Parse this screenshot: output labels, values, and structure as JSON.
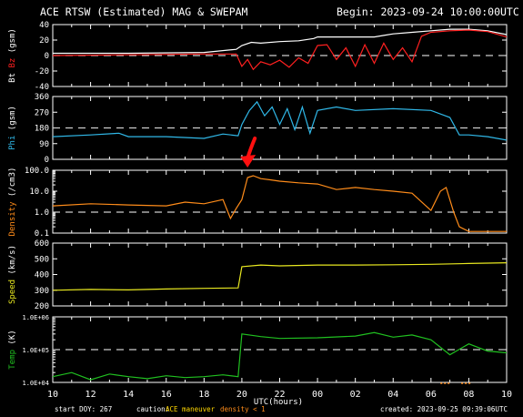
{
  "header": {
    "title": "ACE RTSW (Estimated) MAG & SWEPAM",
    "begin": "Begin: 2023-09-24 10:00:00UTC"
  },
  "footer": {
    "start_doy": "start DOY: 267",
    "caution": "caution:",
    "maneuver": "ACE maneuver",
    "density_note": "density < 1",
    "created": "created: 2023-09-25 09:39:06UTC"
  },
  "colors": {
    "bt": "#ffffff",
    "bz": "#ff2020",
    "phi": "#30b8e8",
    "density": "#ff8c1a",
    "speed": "#e8e820",
    "temp": "#20c020",
    "arrow": "#ff1010",
    "maneuver": "#ffd700"
  },
  "chart_data": {
    "type": "line",
    "xlabel": "UTC(hours)",
    "xticks": [
      "10",
      "12",
      "14",
      "16",
      "18",
      "20",
      "22",
      "00",
      "02",
      "04",
      "06",
      "08",
      "10"
    ],
    "x_hours": [
      0,
      2,
      4,
      6,
      8,
      10,
      12,
      14,
      16,
      18,
      20,
      22,
      24
    ],
    "annotation": {
      "shape": "red arrow",
      "x_hour": 10.3,
      "panel": "Density"
    },
    "panels": [
      {
        "name": "bt_bz",
        "ylabel_parts": [
          "Bt",
          "Bz",
          "(gsm)"
        ],
        "scale": "linear",
        "ylim": [
          -40,
          40
        ],
        "yticks": [
          40,
          20,
          0,
          -20,
          -40
        ],
        "yticklabels": [
          "40",
          "20",
          "0",
          "-20",
          "-40"
        ],
        "dashed": 0,
        "series": [
          {
            "name": "Bt",
            "x": [
              0,
              4,
              8,
              9.7,
              10,
              10.5,
              11,
              12,
              13,
              13.8,
              14,
              15,
              16,
              17,
              17.5,
              18,
              19,
              20,
              21,
              22,
              23,
              24
            ],
            "y": [
              3,
              3,
              4,
              8,
              13,
              17,
              16,
              18,
              19,
              22,
              24,
              24,
              24,
              24,
              26,
              28,
              30,
              32,
              34,
              34,
              32,
              27
            ]
          },
          {
            "name": "Bz",
            "x": [
              0,
              4,
              8,
              9.7,
              10,
              10.3,
              10.6,
              11,
              11.5,
              12,
              12.5,
              13,
              13.5,
              14,
              14.5,
              15,
              15.5,
              16,
              16.5,
              17,
              17.5,
              18,
              18.5,
              19,
              19.5,
              20,
              21,
              22,
              23,
              24
            ],
            "y": [
              0,
              1,
              2,
              2,
              -14,
              -5,
              -18,
              -8,
              -12,
              -6,
              -15,
              -3,
              -10,
              13,
              14,
              -5,
              10,
              -14,
              14,
              -10,
              16,
              -5,
              10,
              -8,
              25,
              30,
              32,
              33,
              31,
              24
            ]
          }
        ]
      },
      {
        "name": "phi",
        "ylabel_parts": [
          "Phi",
          "(gsm)"
        ],
        "scale": "linear",
        "ylim": [
          0,
          360
        ],
        "yticks": [
          360,
          270,
          180,
          90,
          0
        ],
        "yticklabels": [
          "360",
          "270",
          "180",
          "90",
          "0"
        ],
        "dashed": 180,
        "series": [
          {
            "name": "Phi",
            "x": [
              0,
              2,
              3.5,
              4,
              6,
              8,
              9,
              9.8,
              10,
              10.4,
              10.8,
              11.2,
              11.6,
              12,
              12.4,
              12.8,
              13.2,
              13.6,
              14,
              15,
              16,
              18,
              20,
              21,
              21.5,
              22,
              23,
              24
            ],
            "y": [
              130,
              140,
              150,
              130,
              130,
              120,
              145,
              135,
              200,
              280,
              330,
              250,
              300,
              200,
              290,
              170,
              300,
              150,
              280,
              300,
              280,
              290,
              280,
              240,
              140,
              140,
              130,
              110
            ]
          }
        ]
      },
      {
        "name": "density",
        "ylabel_parts": [
          "Density",
          "(/cm3)"
        ],
        "scale": "log",
        "ylim": [
          0.1,
          100
        ],
        "yticks": [
          100,
          10,
          1,
          0.1
        ],
        "yticklabels": [
          "100.0",
          "10.0",
          "1.0",
          "0.1"
        ],
        "dashed": 1,
        "series": [
          {
            "name": "Density",
            "x": [
              0,
              2,
              4,
              6,
              7,
              8,
              9,
              9.4,
              9.7,
              10,
              10.3,
              10.6,
              11,
              11.5,
              12,
              13,
              14,
              15,
              16,
              17,
              18,
              19,
              20,
              20.5,
              20.8,
              21.2,
              21.5,
              22,
              23,
              24
            ],
            "y": [
              2,
              2.5,
              2.2,
              2,
              3,
              2.5,
              4,
              0.5,
              1.5,
              4,
              45,
              55,
              40,
              35,
              30,
              25,
              22,
              12,
              15,
              12,
              10,
              8,
              1.2,
              10,
              15,
              1,
              0.2,
              0.12,
              0.12,
              0.12
            ]
          }
        ]
      },
      {
        "name": "speed",
        "ylabel_parts": [
          "Speed",
          "(km/s)"
        ],
        "scale": "linear",
        "ylim": [
          200,
          600
        ],
        "yticks": [
          600,
          500,
          400,
          300,
          200
        ],
        "yticklabels": [
          "600",
          "500",
          "400",
          "300",
          "200"
        ],
        "dashed": null,
        "series": [
          {
            "name": "Speed",
            "x": [
              0,
              2,
              4,
              6,
              8,
              9.8,
              10,
              11,
              12,
              14,
              16,
              18,
              20,
              22,
              24
            ],
            "y": [
              300,
              305,
              302,
              308,
              312,
              315,
              450,
              460,
              455,
              460,
              460,
              462,
              465,
              470,
              475
            ]
          }
        ]
      },
      {
        "name": "temp",
        "ylabel_parts": [
          "Temp",
          "(K)"
        ],
        "scale": "log",
        "ylim": [
          10000,
          1000000
        ],
        "yticks": [
          1000000,
          100000,
          10000
        ],
        "yticklabels": [
          "1.0E+06",
          "1.0E+05",
          "1.0E+04"
        ],
        "dashed": 100000,
        "series": [
          {
            "name": "Temp",
            "x": [
              0,
              1,
              2,
              3,
              4,
              5,
              6,
              7,
              8,
              9,
              9.8,
              10,
              11,
              12,
              14,
              16,
              17,
              18,
              19,
              20,
              21,
              22,
              23,
              24
            ],
            "y": [
              15000,
              20000,
              12000,
              18000,
              15000,
              13000,
              16000,
              14000,
              15000,
              17000,
              15000,
              300000,
              250000,
              220000,
              230000,
              260000,
              330000,
              240000,
              280000,
              200000,
              70000,
              150000,
              90000,
              80000
            ]
          }
        ]
      }
    ]
  }
}
